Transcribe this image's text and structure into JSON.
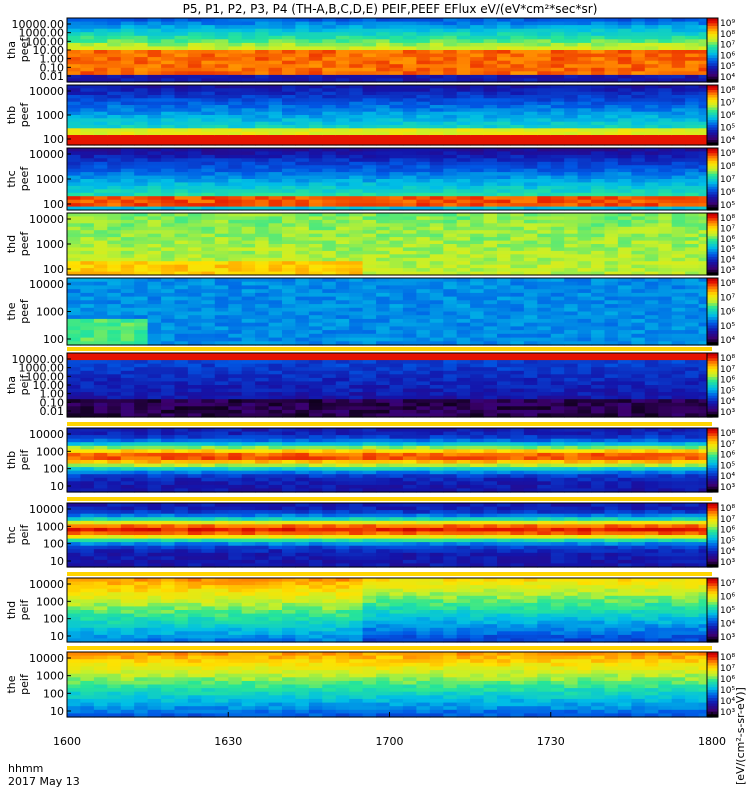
{
  "title": "P5, P1, P2, P3, P4 (TH-A,B,C,D,E) PEIF,PEEF EFlux eV/(eV*cm²*sec*sr)",
  "chart_data": {
    "type": "heatmap",
    "date": "2017 May 13",
    "time_label": "hhmm",
    "x_ticks": [
      "1600",
      "1630",
      "1700",
      "1730",
      "1800"
    ],
    "x_range_minutes": [
      0,
      120
    ],
    "y_scale": "log",
    "colorbar_label": "[eV/(cm²-s-sr-eV)]",
    "panels": [
      {
        "label_top": "tha",
        "label_bottom": "peef",
        "yticks": [
          "10000.00",
          "1000.00",
          "100.00",
          "10.00",
          "1.00",
          "0.10",
          "0.01"
        ],
        "cbar_ticks": [
          "10⁹",
          "10⁸",
          "10⁷",
          "10⁶",
          "10⁵",
          "10⁴"
        ],
        "pattern": "tha_peef"
      },
      {
        "label_top": "thb",
        "label_bottom": "peef",
        "yticks": [
          "10000",
          "1000",
          "100"
        ],
        "cbar_ticks": [
          "10⁸",
          "10⁷",
          "10⁶",
          "10⁵",
          "10⁴"
        ],
        "pattern": "thb_peef"
      },
      {
        "label_top": "thc",
        "label_bottom": "peef",
        "yticks": [
          "10000",
          "1000",
          "100"
        ],
        "cbar_ticks": [
          "10⁹",
          "10⁸",
          "10⁷",
          "10⁶",
          "10⁵"
        ],
        "pattern": "thc_peef"
      },
      {
        "label_top": "thd",
        "label_bottom": "peef",
        "yticks": [
          "10000",
          "1000",
          "100"
        ],
        "cbar_ticks": [
          "10⁸",
          "10⁷",
          "10⁶",
          "10⁵",
          "10⁴",
          "10³"
        ],
        "pattern": "thd_peef"
      },
      {
        "label_top": "the",
        "label_bottom": "peef",
        "yticks": [
          "10000",
          "1000",
          "100"
        ],
        "cbar_ticks": [
          "10⁸",
          "10⁷",
          "10⁶",
          "10⁵",
          "10⁴"
        ],
        "pattern": "the_peef"
      },
      {
        "label_top": "tha",
        "label_bottom": "peif",
        "yticks": [
          "10000.00",
          "1000.00",
          "100.00",
          "10.00",
          "1.00",
          "0.10",
          "0.01"
        ],
        "cbar_ticks": [
          "10⁸",
          "10⁷",
          "10⁶",
          "10⁵",
          "10⁴",
          "10³"
        ],
        "pattern": "tha_peif"
      },
      {
        "label_top": "thb",
        "label_bottom": "peif",
        "yticks": [
          "10000",
          "1000",
          "100",
          "10"
        ],
        "cbar_ticks": [
          "10⁸",
          "10⁷",
          "10⁶",
          "10⁵",
          "10⁴",
          "10³"
        ],
        "pattern": "thb_peif"
      },
      {
        "label_top": "thc",
        "label_bottom": "peif",
        "yticks": [
          "10000",
          "1000",
          "100",
          "10"
        ],
        "cbar_ticks": [
          "10⁸",
          "10⁷",
          "10⁶",
          "10⁵",
          "10⁴",
          "10³"
        ],
        "pattern": "thc_peif"
      },
      {
        "label_top": "thd",
        "label_bottom": "peif",
        "yticks": [
          "10000",
          "1000",
          "100",
          "10"
        ],
        "cbar_ticks": [
          "10⁷",
          "10⁶",
          "10⁵",
          "10⁴",
          "10³"
        ],
        "pattern": "thd_peif"
      },
      {
        "label_top": "the",
        "label_bottom": "peif",
        "yticks": [
          "10000",
          "1000",
          "100",
          "10"
        ],
        "cbar_ticks": [
          "10⁸",
          "10⁷",
          "10⁶",
          "10⁵",
          "10⁴",
          "10³"
        ],
        "pattern": "the_peif"
      }
    ]
  }
}
